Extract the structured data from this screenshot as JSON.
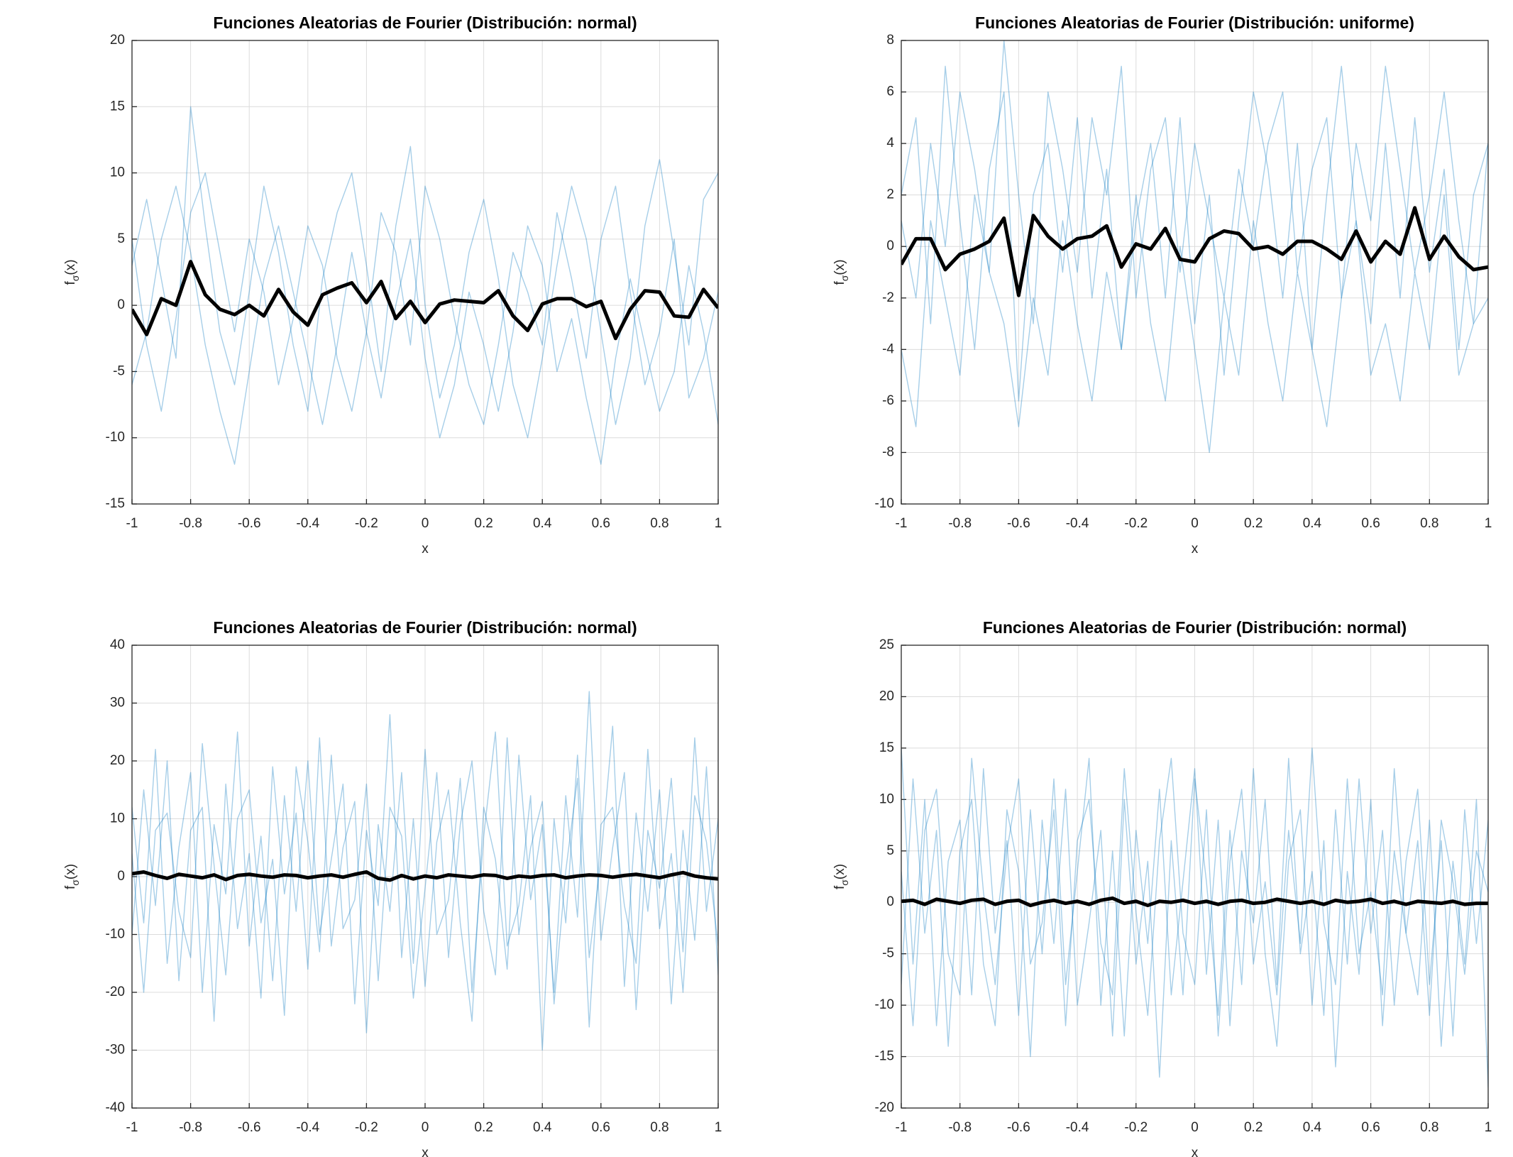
{
  "chart_data": [
    {
      "type": "line",
      "title": "Funciones Aleatorias de Fourier (Distribución: normal)",
      "xlabel": "x",
      "ylabel": [
        "f",
        "σ",
        "(x)"
      ],
      "x": [
        -1,
        -0.95,
        -0.9,
        -0.85,
        -0.8,
        -0.75,
        -0.7,
        -0.65,
        -0.6,
        -0.55,
        -0.5,
        -0.45,
        -0.4,
        -0.35,
        -0.3,
        -0.25,
        -0.2,
        -0.15,
        -0.1,
        -0.05,
        0,
        0.05,
        0.1,
        0.15,
        0.2,
        0.25,
        0.3,
        0.35,
        0.4,
        0.45,
        0.5,
        0.55,
        0.6,
        0.65,
        0.7,
        0.75,
        0.8,
        0.85,
        0.9,
        0.95,
        1
      ],
      "xlim": [
        -1,
        1
      ],
      "ylim": [
        -15,
        20
      ],
      "xticks": [
        -1,
        -0.8,
        -0.6,
        -0.4,
        -0.2,
        0,
        0.2,
        0.4,
        0.6,
        0.8,
        1
      ],
      "yticks": [
        -15,
        -10,
        -5,
        0,
        5,
        10,
        15,
        20
      ],
      "grid": true,
      "series": [
        {
          "color": "#0072bd",
          "values": [
            3,
            8,
            2,
            -4,
            15,
            6,
            -2,
            -6,
            1,
            9,
            4,
            -3,
            -8,
            2,
            7,
            10,
            3,
            -5,
            6,
            12,
            0,
            -7,
            -3,
            4,
            8,
            2,
            -6,
            -10,
            -4,
            3,
            9,
            5,
            -2,
            -9,
            -4,
            6,
            11,
            4,
            -3,
            8,
            10
          ]
        },
        {
          "color": "#0072bd",
          "values": [
            -6,
            -2,
            5,
            9,
            4,
            -3,
            -8,
            -12,
            -5,
            2,
            6,
            1,
            -4,
            -9,
            -3,
            4,
            -2,
            -7,
            0,
            5,
            -4,
            -10,
            -6,
            1,
            -3,
            -8,
            -2,
            6,
            3,
            -5,
            -1,
            -7,
            -12,
            -4,
            2,
            -3,
            -8,
            -5,
            3,
            -2,
            -9
          ]
        },
        {
          "color": "#0072bd",
          "values": [
            5,
            -3,
            -8,
            -1,
            7,
            10,
            4,
            -2,
            5,
            1,
            -6,
            -1,
            6,
            3,
            -4,
            -8,
            -2,
            7,
            4,
            -3,
            9,
            5,
            -1,
            -6,
            -9,
            -3,
            4,
            1,
            -3,
            7,
            2,
            -4,
            5,
            9,
            1,
            -6,
            -2,
            5,
            -7,
            -4,
            1
          ]
        },
        {
          "color": "#000000",
          "values": [
            -0.3,
            -2.2,
            0.5,
            0,
            3.3,
            0.8,
            -0.3,
            -0.7,
            0,
            -0.8,
            1.2,
            -0.5,
            -1.5,
            0.8,
            1.3,
            1.7,
            0.2,
            1.8,
            -1.0,
            0.3,
            -1.3,
            0.1,
            0.4,
            0.3,
            0.2,
            1.1,
            -0.8,
            -1.9,
            0.1,
            0.5,
            0.5,
            -0.1,
            0.3,
            -2.5,
            -0.3,
            1.1,
            1.0,
            -0.8,
            -0.9,
            1.2,
            -0.2
          ]
        }
      ]
    },
    {
      "type": "line",
      "title": "Funciones Aleatorias de Fourier (Distribución: uniforme)",
      "xlabel": "x",
      "ylabel": [
        "f",
        "σ",
        "(x)"
      ],
      "x": [
        -1,
        -0.95,
        -0.9,
        -0.85,
        -0.8,
        -0.75,
        -0.7,
        -0.65,
        -0.6,
        -0.55,
        -0.5,
        -0.45,
        -0.4,
        -0.35,
        -0.3,
        -0.25,
        -0.2,
        -0.15,
        -0.1,
        -0.05,
        0,
        0.05,
        0.1,
        0.15,
        0.2,
        0.25,
        0.3,
        0.35,
        0.4,
        0.45,
        0.5,
        0.55,
        0.6,
        0.65,
        0.7,
        0.75,
        0.8,
        0.85,
        0.9,
        0.95,
        1
      ],
      "xlim": [
        -1,
        1
      ],
      "ylim": [
        -10,
        8
      ],
      "xticks": [
        -1,
        -0.8,
        -0.6,
        -0.4,
        -0.2,
        0,
        0.2,
        0.4,
        0.6,
        0.8,
        1
      ],
      "yticks": [
        -10,
        -8,
        -6,
        -4,
        -2,
        0,
        2,
        4,
        6,
        8
      ],
      "grid": true,
      "series": [
        {
          "color": "#0072bd",
          "values": [
            2,
            5,
            -3,
            7,
            1,
            -4,
            3,
            6,
            -6,
            2,
            4,
            -1,
            5,
            -2,
            3,
            -4,
            1,
            4,
            -2,
            5,
            -3,
            2,
            -5,
            1,
            6,
            3,
            -2,
            4,
            -4,
            2,
            7,
            1,
            -3,
            4,
            -2,
            5,
            -1,
            3,
            -4,
            2,
            4
          ]
        },
        {
          "color": "#0072bd",
          "values": [
            -4,
            -7,
            1,
            -2,
            -5,
            2,
            -1,
            -3,
            -7,
            -2,
            -5,
            1,
            -3,
            -6,
            -1,
            -4,
            2,
            -3,
            -6,
            0,
            -4,
            -8,
            -2,
            -5,
            1,
            -3,
            -6,
            -1,
            -4,
            -7,
            -2,
            1,
            -5,
            -3,
            -6,
            -1,
            -4,
            2,
            -5,
            -3,
            -2
          ]
        },
        {
          "color": "#0072bd",
          "values": [
            1,
            -2,
            4,
            0,
            6,
            3,
            -1,
            8,
            2,
            -3,
            6,
            3,
            -1,
            5,
            2,
            7,
            -2,
            3,
            5,
            -1,
            4,
            1,
            -2,
            3,
            0,
            4,
            6,
            -1,
            3,
            5,
            -2,
            4,
            1,
            7,
            3,
            -1,
            2,
            6,
            1,
            -3,
            4
          ]
        },
        {
          "color": "#000000",
          "values": [
            -0.7,
            0.3,
            0.3,
            -0.9,
            -0.3,
            -0.1,
            0.2,
            1.1,
            -1.9,
            1.2,
            0.4,
            -0.1,
            0.3,
            0.4,
            0.8,
            -0.8,
            0.1,
            -0.1,
            0.7,
            -0.5,
            -0.6,
            0.3,
            0.6,
            0.5,
            -0.1,
            0,
            -0.3,
            0.2,
            0.2,
            -0.1,
            -0.5,
            0.6,
            -0.6,
            0.2,
            -0.3,
            1.5,
            -0.5,
            0.4,
            -0.4,
            -0.9,
            -0.8
          ]
        }
      ]
    },
    {
      "type": "line",
      "title": "Funciones Aleatorias de Fourier (Distribución: normal)",
      "xlabel": "x",
      "ylabel": [
        "f",
        "σ",
        "(x)"
      ],
      "x": [
        -1,
        -0.96,
        -0.92,
        -0.88,
        -0.84,
        -0.8,
        -0.76,
        -0.72,
        -0.68,
        -0.64,
        -0.6,
        -0.56,
        -0.52,
        -0.48,
        -0.44,
        -0.4,
        -0.36,
        -0.32,
        -0.28,
        -0.24,
        -0.2,
        -0.16,
        -0.12,
        -0.08,
        -0.04,
        0,
        0.04,
        0.08,
        0.12,
        0.16,
        0.2,
        0.24,
        0.28,
        0.32,
        0.36,
        0.4,
        0.44,
        0.48,
        0.52,
        0.56,
        0.6,
        0.64,
        0.68,
        0.72,
        0.76,
        0.8,
        0.84,
        0.88,
        0.92,
        0.96,
        1
      ],
      "xlim": [
        -1,
        1
      ],
      "ylim": [
        -40,
        40
      ],
      "xticks": [
        -1,
        -0.8,
        -0.6,
        -0.4,
        -0.2,
        0,
        0.2,
        0.4,
        0.6,
        0.8,
        1
      ],
      "yticks": [
        -40,
        -30,
        -20,
        -10,
        0,
        10,
        20,
        30,
        40
      ],
      "grid": true,
      "series": [
        {
          "color": "#0072bd",
          "values": [
            12,
            -8,
            22,
            -15,
            5,
            18,
            -20,
            9,
            -3,
            25,
            -12,
            7,
            -18,
            14,
            -6,
            20,
            -10,
            3,
            16,
            -22,
            8,
            -5,
            28,
            -14,
            10,
            -19,
            6,
            15,
            -8,
            -25,
            12,
            3,
            -16,
            21,
            -4,
            9,
            -20,
            14,
            -7,
            32,
            -11,
            5,
            18,
            -23,
            8,
            -2,
            17,
            -13,
            24,
            -6,
            10
          ]
        },
        {
          "color": "#0072bd",
          "values": [
            -10,
            15,
            -5,
            20,
            -18,
            8,
            12,
            -25,
            16,
            -9,
            4,
            -21,
            19,
            -3,
            11,
            -16,
            24,
            -12,
            5,
            13,
            -27,
            9,
            -6,
            18,
            -15,
            22,
            -10,
            -4,
            17,
            -20,
            7,
            25,
            -12,
            -5,
            14,
            -30,
            10,
            -8,
            21,
            -14,
            3,
            26,
            -19,
            11,
            -6,
            15,
            -22,
            8,
            -11,
            19,
            -17
          ]
        },
        {
          "color": "#0072bd",
          "values": [
            4,
            -20,
            8,
            11,
            -6,
            -14,
            23,
            2,
            -17,
            10,
            15,
            -8,
            3,
            -24,
            19,
            6,
            -13,
            21,
            -9,
            -4,
            16,
            -18,
            12,
            7,
            -21,
            -2,
            18,
            -14,
            9,
            20,
            -6,
            -17,
            24,
            -10,
            5,
            13,
            -22,
            1,
            17,
            -26,
            9,
            12,
            -5,
            -15,
            22,
            -9,
            4,
            -20,
            14,
            6,
            -12
          ]
        },
        {
          "color": "#000000",
          "values": [
            0.5,
            0.8,
            0.2,
            -0.3,
            0.4,
            0.1,
            -0.2,
            0.3,
            -0.5,
            0.2,
            0.4,
            0.1,
            -0.1,
            0.3,
            0.2,
            -0.2,
            0.1,
            0.3,
            -0.1,
            0.4,
            0.8,
            -0.3,
            -0.6,
            0.2,
            -0.4,
            0.1,
            -0.2,
            0.3,
            0.1,
            -0.1,
            0.3,
            0.2,
            -0.3,
            0.1,
            -0.1,
            0.2,
            0.3,
            -0.2,
            0.1,
            0.3,
            0.2,
            -0.1,
            0.2,
            0.4,
            0.1,
            -0.2,
            0.3,
            0.7,
            0.1,
            -0.2,
            -0.4
          ]
        }
      ]
    },
    {
      "type": "line",
      "title": "Funciones Aleatorias de Fourier (Distribución: normal)",
      "xlabel": "x",
      "ylabel": [
        "f",
        "σ",
        "(x)"
      ],
      "x": [
        -1,
        -0.96,
        -0.92,
        -0.88,
        -0.84,
        -0.8,
        -0.76,
        -0.72,
        -0.68,
        -0.64,
        -0.6,
        -0.56,
        -0.52,
        -0.48,
        -0.44,
        -0.4,
        -0.36,
        -0.32,
        -0.28,
        -0.24,
        -0.2,
        -0.16,
        -0.12,
        -0.08,
        -0.04,
        0,
        0.04,
        0.08,
        0.12,
        0.16,
        0.2,
        0.24,
        0.28,
        0.32,
        0.36,
        0.4,
        0.44,
        0.48,
        0.52,
        0.56,
        0.6,
        0.64,
        0.68,
        0.72,
        0.76,
        0.8,
        0.84,
        0.88,
        0.92,
        0.96,
        1
      ],
      "xlim": [
        -1,
        1
      ],
      "ylim": [
        -20,
        25
      ],
      "xticks": [
        -1,
        -0.8,
        -0.6,
        -0.4,
        -0.2,
        0,
        0.2,
        0.4,
        0.6,
        0.8,
        1
      ],
      "yticks": [
        -20,
        -15,
        -10,
        -5,
        0,
        5,
        10,
        15,
        20,
        25
      ],
      "grid": true,
      "series": [
        {
          "color": "#0072bd",
          "values": [
            15,
            -6,
            10,
            -12,
            4,
            8,
            -9,
            13,
            -3,
            6,
            -11,
            9,
            -5,
            12,
            -8,
            3,
            14,
            -10,
            5,
            -13,
            7,
            -4,
            11,
            -9,
            2,
            13,
            -7,
            8,
            -12,
            5,
            -2,
            10,
            -8,
            14,
            -5,
            3,
            -11,
            9,
            -6,
            12,
            -3,
            7,
            -10,
            4,
            11,
            -8,
            6,
            -13,
            9,
            -4,
            8
          ]
        },
        {
          "color": "#0072bd",
          "values": [
            -8,
            12,
            -3,
            7,
            -14,
            5,
            10,
            -6,
            -12,
            9,
            3,
            -15,
            8,
            -4,
            11,
            -10,
            -2,
            7,
            -13,
            10,
            -6,
            4,
            -17,
            6,
            -9,
            12,
            2,
            -11,
            7,
            -8,
            13,
            -5,
            -14,
            4,
            9,
            -10,
            6,
            -16,
            3,
            -7,
            10,
            -12,
            5,
            -3,
            -9,
            8,
            -14,
            4,
            -6,
            10,
            -18
          ]
        },
        {
          "color": "#0072bd",
          "values": [
            3,
            -12,
            7,
            11,
            -5,
            -9,
            14,
            1,
            -8,
            5,
            12,
            -6,
            -2,
            9,
            -12,
            6,
            10,
            -4,
            -9,
            13,
            -1,
            -11,
            6,
            14,
            -3,
            -8,
            9,
            -13,
            4,
            11,
            -6,
            2,
            -9,
            7,
            -4,
            15,
            -2,
            -8,
            12,
            -5,
            1,
            -9,
            13,
            -3,
            6,
            -11,
            8,
            2,
            -7,
            5,
            1
          ]
        },
        {
          "color": "#000000",
          "values": [
            0.1,
            0.2,
            -0.2,
            0.3,
            0.1,
            -0.1,
            0.2,
            0.3,
            -0.2,
            0.1,
            0.2,
            -0.3,
            0.0,
            0.2,
            -0.1,
            0.1,
            -0.2,
            0.2,
            0.4,
            -0.1,
            0.1,
            -0.3,
            0.1,
            0.0,
            0.2,
            -0.1,
            0.1,
            -0.2,
            0.1,
            0.2,
            -0.1,
            0.0,
            0.3,
            0.1,
            -0.1,
            0.1,
            -0.2,
            0.2,
            0.0,
            0.1,
            0.3,
            -0.1,
            0.1,
            -0.2,
            0.1,
            0.0,
            -0.1,
            0.1,
            -0.2,
            -0.1,
            -0.1
          ]
        }
      ]
    }
  ]
}
